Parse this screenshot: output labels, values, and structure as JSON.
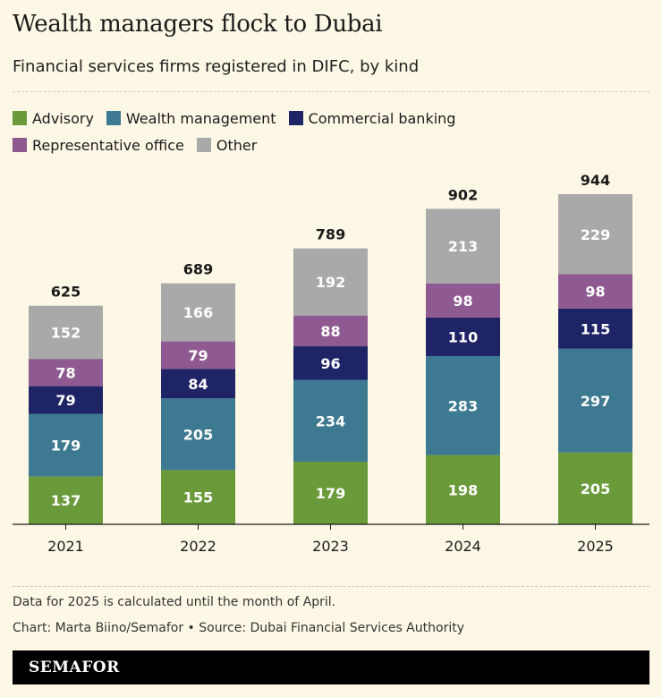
{
  "title": "Wealth managers flock to Dubai",
  "subtitle": "Financial services firms registered in DIFC, by kind",
  "legend": [
    {
      "label": "Advisory",
      "color": "#6a9a3a"
    },
    {
      "label": "Wealth management",
      "color": "#3d7a91"
    },
    {
      "label": "Commercial banking",
      "color": "#1f2466"
    },
    {
      "label": "Representative office",
      "color": "#8f5a91"
    },
    {
      "label": "Other",
      "color": "#a9a9a9"
    }
  ],
  "chart_data": {
    "type": "bar",
    "stacked": true,
    "categories": [
      "2021",
      "2022",
      "2023",
      "2024",
      "2025"
    ],
    "series": [
      {
        "name": "Advisory",
        "color": "#6a9a3a",
        "values": [
          137,
          155,
          179,
          198,
          205
        ]
      },
      {
        "name": "Wealth management",
        "color": "#3d7a91",
        "values": [
          179,
          205,
          234,
          283,
          297
        ]
      },
      {
        "name": "Commercial banking",
        "color": "#1f2466",
        "values": [
          79,
          84,
          96,
          110,
          115
        ]
      },
      {
        "name": "Representative office",
        "color": "#8f5a91",
        "values": [
          78,
          79,
          88,
          98,
          98
        ]
      },
      {
        "name": "Other",
        "color": "#a9a9a9",
        "values": [
          152,
          166,
          192,
          213,
          229
        ]
      }
    ],
    "totals": [
      625,
      689,
      789,
      902,
      944
    ],
    "ylim": [
      0,
      944
    ],
    "grid": false,
    "legend_position": "top"
  },
  "note": "Data for 2025 is calculated until the month of April.",
  "source": "Chart: Marta Biino/Semafor • Source: Dubai Financial Services Authority",
  "brand": "SEMAFOR"
}
